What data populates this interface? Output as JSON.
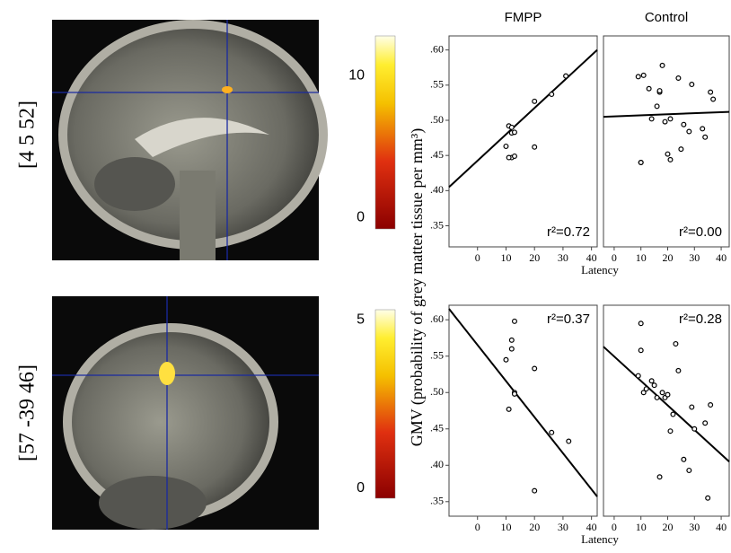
{
  "brain_panels": [
    {
      "label": "[4 5 52]",
      "colorbar_lim": [
        -0.8,
        12.8
      ],
      "colorbar_ticks": [
        0,
        10
      ]
    },
    {
      "label": "[57 -39 46]",
      "colorbar_lim": [
        -0.3,
        5.3
      ],
      "colorbar_ticks": [
        0,
        5
      ]
    }
  ],
  "y_axis_label": "GMV (probability of grey matter tissue per mm³)",
  "chart_data": [
    {
      "type": "scatter",
      "title": "FMPP",
      "annotation": "r²=0.72",
      "x": [
        10,
        11,
        12,
        12,
        13,
        12,
        13,
        11,
        20,
        20,
        26,
        31
      ],
      "y": [
        0.463,
        0.492,
        0.49,
        0.482,
        0.483,
        0.447,
        0.449,
        0.447,
        0.462,
        0.527,
        0.537,
        0.563
      ],
      "fit_x": [
        -10,
        42
      ],
      "fit_y": [
        0.405,
        0.6
      ],
      "xlim": [
        -10,
        42
      ],
      "ylim": [
        0.32,
        0.62
      ],
      "xticks": [
        0,
        10,
        20,
        30,
        40
      ],
      "yticks": [
        {
          "value": 0.35,
          "label": ".35"
        },
        {
          "value": 0.4,
          "label": ".40"
        },
        {
          "value": 0.45,
          "label": ".45"
        },
        {
          "value": 0.5,
          "label": ".50"
        },
        {
          "value": 0.55,
          "label": ".55"
        },
        {
          "value": 0.6,
          "label": ".60"
        }
      ],
      "xlabel": "Latency"
    },
    {
      "type": "scatter",
      "title": "Control",
      "annotation": "r²=0.00",
      "x": [
        9,
        10,
        10,
        11,
        13,
        14,
        16,
        17,
        17,
        18,
        19,
        20,
        21,
        21,
        24,
        25,
        26,
        28,
        29,
        33,
        34,
        36,
        37
      ],
      "y": [
        0.562,
        0.44,
        0.44,
        0.564,
        0.545,
        0.502,
        0.52,
        0.54,
        0.542,
        0.578,
        0.498,
        0.452,
        0.444,
        0.502,
        0.56,
        0.459,
        0.494,
        0.484,
        0.551,
        0.488,
        0.476,
        0.54,
        0.53
      ],
      "fit_x": [
        -4,
        43
      ],
      "fit_y": [
        0.505,
        0.512
      ],
      "xlim": [
        -4,
        43
      ],
      "ylim": [
        0.32,
        0.62
      ],
      "xticks": [
        0,
        10,
        20,
        30,
        40
      ]
    },
    {
      "type": "scatter",
      "annotation": "r²=0.37",
      "x": [
        10,
        12,
        13,
        12,
        13,
        11,
        20,
        20,
        26,
        32,
        13
      ],
      "y": [
        0.545,
        0.572,
        0.598,
        0.56,
        0.5,
        0.477,
        0.533,
        0.365,
        0.445,
        0.433,
        0.498
      ],
      "fit_x": [
        -10,
        42
      ],
      "fit_y": [
        0.615,
        0.357
      ],
      "xlim": [
        -10,
        42
      ],
      "ylim": [
        0.33,
        0.62
      ],
      "xticks": [
        0,
        10,
        20,
        30,
        40
      ],
      "yticks": [
        {
          "value": 0.35,
          "label": ".35"
        },
        {
          "value": 0.4,
          "label": ".40"
        },
        {
          "value": 0.45,
          "label": ".45"
        },
        {
          "value": 0.5,
          "label": ".50"
        },
        {
          "value": 0.55,
          "label": ".55"
        },
        {
          "value": 0.6,
          "label": ".60"
        }
      ],
      "xlabel": "Latency"
    },
    {
      "type": "scatter",
      "annotation": "r²=0.28",
      "x": [
        9,
        10,
        10,
        11,
        12,
        14,
        15,
        16,
        17,
        18,
        19,
        20,
        21,
        22,
        23,
        24,
        26,
        28,
        29,
        30,
        34,
        35,
        36
      ],
      "y": [
        0.523,
        0.595,
        0.558,
        0.5,
        0.505,
        0.516,
        0.51,
        0.493,
        0.384,
        0.5,
        0.493,
        0.497,
        0.447,
        0.47,
        0.567,
        0.53,
        0.408,
        0.393,
        0.48,
        0.45,
        0.458,
        0.355,
        0.483
      ],
      "fit_x": [
        -4,
        43
      ],
      "fit_y": [
        0.563,
        0.405
      ],
      "xlim": [
        -4,
        43
      ],
      "ylim": [
        0.33,
        0.62
      ],
      "xticks": [
        0,
        10,
        20,
        30,
        40
      ]
    }
  ]
}
